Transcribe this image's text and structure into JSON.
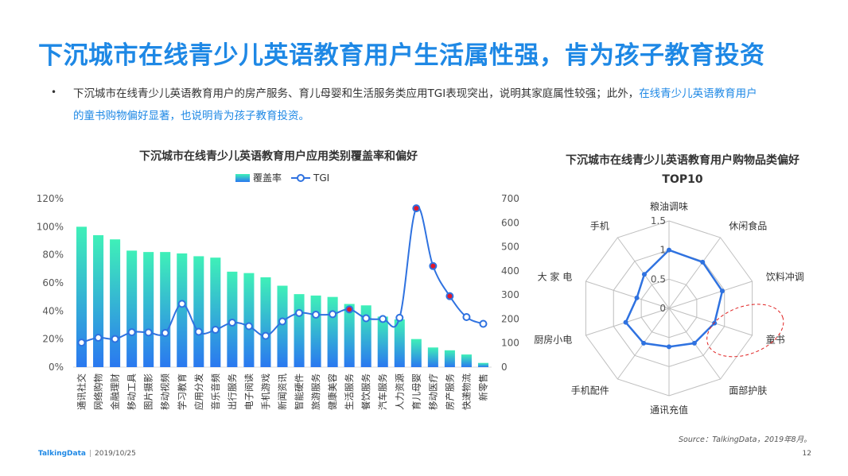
{
  "slide": {
    "title": "下沉城市在线青少儿英语教育用户生活属性强，肯为孩子教育投资",
    "bullet_marker": "•",
    "bullet_text": "下沉城市在线青少儿英语教育用户的房产服务、育儿母婴和生活服务类应用TGI表现突出，说明其家庭属性较强；此外，",
    "bullet_highlight": "在线青少儿英语教育用户的童书购物偏好显著，也说明肯为孩子教育投资。",
    "source": "Source：TalkingData，2019年8月。",
    "footer_logo": "TalkingData",
    "footer_sep": "|",
    "footer_date": "2019/10/25",
    "page_number": "12"
  },
  "colors": {
    "title_blue": "#1e88e5",
    "bar_top": "#3ff0b8",
    "bar_bottom": "#2a78f0",
    "line": "#2f72e0",
    "highlight_point": "#e0182c",
    "radar_line": "#2f72e0",
    "radar_grid": "#bfbfbf",
    "dashed_circle": "#e02020"
  },
  "bar_chart_title": "下沉城市在线青少儿英语教育用户应用类别覆盖率和偏好",
  "radar_chart_title_line1": "下沉城市在线青少儿英语教育用户购物品类偏好",
  "radar_chart_title_line2": "TOP10",
  "chart_data": [
    {
      "type": "bar",
      "title": "下沉城市在线青少儿英语教育用户应用类别覆盖率和偏好",
      "legend_position": "top",
      "categories": [
        "通讯社交",
        "网络购物",
        "金融理财",
        "移动工具",
        "图片摄影",
        "移动视频",
        "学习教育",
        "应用分发",
        "音乐音频",
        "出行服务",
        "电子阅读",
        "手机游戏",
        "新闻资讯",
        "智能硬件",
        "旅游服务",
        "健康美容",
        "生活服务",
        "餐饮服务",
        "汽车服务",
        "人力资源",
        "育儿母婴",
        "移动医疗",
        "房产服务",
        "快递物流",
        "新零售"
      ],
      "y_left_ticks": [
        "0%",
        "20%",
        "40%",
        "60%",
        "80%",
        "100%",
        "120%"
      ],
      "y_left_lim": [
        0,
        1.2
      ],
      "y_right_ticks": [
        "0",
        "100",
        "200",
        "300",
        "400",
        "500",
        "600",
        "700"
      ],
      "y_right_lim": [
        0,
        700
      ],
      "series": [
        {
          "name": "覆盖率",
          "kind": "bar",
          "axis": "left",
          "values": [
            1.0,
            0.94,
            0.91,
            0.83,
            0.82,
            0.82,
            0.81,
            0.79,
            0.78,
            0.68,
            0.67,
            0.64,
            0.58,
            0.52,
            0.51,
            0.5,
            0.45,
            0.44,
            0.36,
            0.34,
            0.2,
            0.14,
            0.12,
            0.09,
            0.03
          ]
        },
        {
          "name": "TGI",
          "kind": "line",
          "axis": "right",
          "values": [
            102,
            122,
            117,
            145,
            144,
            142,
            263,
            147,
            155,
            185,
            170,
            130,
            190,
            225,
            218,
            220,
            240,
            203,
            200,
            205,
            660,
            420,
            295,
            208,
            180
          ],
          "highlighted_indices": [
            16,
            20,
            21,
            22
          ]
        }
      ]
    },
    {
      "type": "radar",
      "title": "下沉城市在线青少儿英语教育用户购物品类偏好 TOP10",
      "axes": [
        "粮油调味",
        "休闲食品",
        "饮料冲调",
        "童书",
        "面部护肤",
        "通讯充值",
        "手机配件",
        "厨房小电",
        "大 家 电",
        "手机"
      ],
      "ticks": [
        "0",
        "0.5",
        "1",
        "1.5"
      ],
      "r_lim": [
        0,
        1.5
      ],
      "values": [
        1.0,
        0.98,
        0.96,
        0.82,
        0.74,
        0.66,
        0.74,
        0.78,
        0.58,
        0.72
      ],
      "highlighted_axis": "童书"
    }
  ]
}
